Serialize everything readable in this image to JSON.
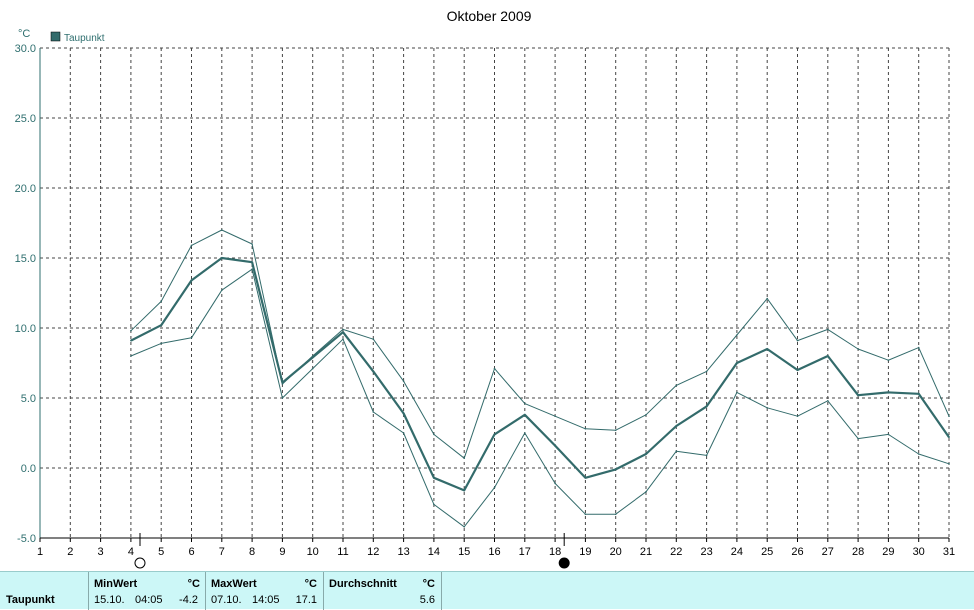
{
  "chart_data": {
    "type": "line",
    "title": "Oktober 2009",
    "ylabel": "°C",
    "ylim": [
      -5,
      30
    ],
    "yticks": [
      "30.0",
      "25.0",
      "20.0",
      "15.0",
      "10.0",
      "5.0",
      "0.0",
      "-5.0"
    ],
    "xlim": [
      1,
      31
    ],
    "categories": [
      "1",
      "2",
      "3",
      "4",
      "5",
      "6",
      "7",
      "8",
      "9",
      "10",
      "11",
      "12",
      "13",
      "14",
      "15",
      "16",
      "17",
      "18",
      "19",
      "20",
      "21",
      "22",
      "23",
      "24",
      "25",
      "26",
      "27",
      "28",
      "29",
      "30",
      "31"
    ],
    "legend": "top-left",
    "grid": true,
    "series": [
      {
        "name": "Taupunkt",
        "role": "mean",
        "x": [
          4,
          5,
          6,
          7,
          8,
          9,
          10,
          11,
          12,
          13,
          14,
          15,
          16,
          17,
          18,
          19,
          20,
          21,
          22,
          23,
          24,
          25,
          26,
          27,
          28,
          29,
          30,
          31
        ],
        "values": [
          9.1,
          10.2,
          13.4,
          15.0,
          14.7,
          6.1,
          7.9,
          9.7,
          6.9,
          3.9,
          -0.7,
          -1.6,
          2.4,
          3.8,
          1.6,
          -0.7,
          -0.1,
          1.0,
          3.0,
          4.4,
          7.5,
          8.5,
          7.0,
          8.0,
          5.2,
          5.4,
          5.3,
          2.2
        ]
      },
      {
        "role": "max",
        "x": [
          4,
          5,
          6,
          7,
          8,
          9,
          10,
          11,
          12,
          13,
          14,
          15,
          16,
          17,
          18,
          19,
          20,
          21,
          22,
          23,
          24,
          25,
          26,
          27,
          28,
          29,
          30,
          31
        ],
        "values": [
          9.8,
          11.9,
          15.9,
          17.0,
          16.0,
          6.0,
          8.0,
          9.9,
          9.2,
          6.2,
          2.4,
          0.7,
          7.1,
          4.6,
          3.7,
          2.8,
          2.7,
          3.8,
          5.9,
          6.9,
          9.5,
          12.1,
          9.1,
          9.9,
          8.5,
          7.7,
          8.6,
          3.7
        ]
      },
      {
        "role": "min",
        "x": [
          4,
          5,
          6,
          7,
          8,
          9,
          10,
          11,
          12,
          13,
          14,
          15,
          16,
          17,
          18,
          19,
          20,
          21,
          22,
          23,
          24,
          25,
          26,
          27,
          28,
          29,
          30,
          31
        ],
        "values": [
          8.0,
          8.9,
          9.3,
          12.7,
          14.2,
          5.0,
          7.1,
          9.2,
          4.0,
          2.5,
          -2.6,
          -4.2,
          -1.4,
          2.5,
          -1.1,
          -3.3,
          -3.3,
          -1.7,
          1.2,
          0.9,
          5.4,
          4.3,
          3.7,
          4.8,
          2.1,
          2.4,
          1.0,
          0.3
        ]
      }
    ],
    "colors": {
      "mean": "#336b6b",
      "band": "#336b6b",
      "axis": "#2f6f6f",
      "grid": "#444444"
    },
    "moon_markers": [
      {
        "x": 4.3,
        "icon": "new-moon-open-circle-icon"
      },
      {
        "x": 18.3,
        "icon": "full-moon-filled-circle-icon"
      }
    ]
  },
  "stats": {
    "row_label": "Taupunkt",
    "min": {
      "header": "MinWert",
      "unit": "°C",
      "date": "15.10.",
      "time": "04:05",
      "value": "-4.2"
    },
    "max": {
      "header": "MaxWert",
      "unit": "°C",
      "date": "07.10.",
      "time": "14:05",
      "value": "17.1"
    },
    "avg": {
      "header": "Durchschnitt",
      "unit": "°C",
      "value": "5.6"
    }
  }
}
